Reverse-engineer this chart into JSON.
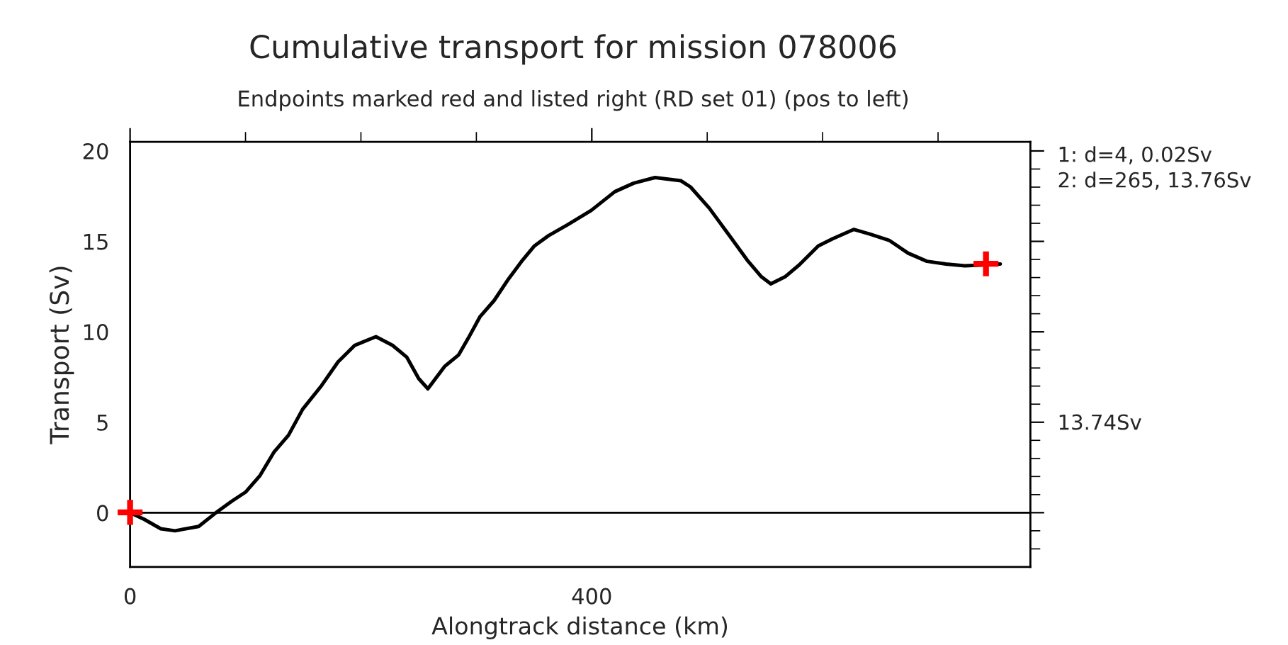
{
  "chart_data": {
    "type": "line",
    "title": "Cumulative transport for mission 078006",
    "subtitle": "Endpoints marked red and listed right (RD set 01) (pos to left)",
    "xlabel": "Alongtrack distance (km)",
    "ylabel": "Transport (Sv)",
    "series": [
      {
        "color": "#000000",
        "x": [
          0,
          12.3,
          26.6,
          38.9,
          59.4,
          73.8,
          88,
          100.3,
          112.6,
          124.9,
          137.2,
          149.5,
          165.9,
          180.2,
          194.6,
          213,
          227.4,
          239.7,
          250,
          258,
          272.4,
          284.7,
          293,
          303,
          315.4,
          327.7,
          340,
          350.3,
          362.6,
          379,
          399.5,
          420,
          436.4,
          454.8,
          477.3,
          485.5,
          501.9,
          518.3,
          534.7,
          547,
          555.1,
          567.4,
          579.7,
          596.2,
          608.5,
          626.9,
          641.2,
          657.6,
          674,
          690.3,
          706.8,
          723.2,
          739.5,
          753.9
        ],
        "values": [
          0,
          -0.37,
          -0.89,
          -1.0,
          -0.76,
          -0.03,
          0.63,
          1.15,
          2.06,
          3.37,
          4.28,
          5.72,
          7.03,
          8.34,
          9.25,
          9.73,
          9.25,
          8.6,
          7.42,
          6.85,
          8.08,
          8.73,
          9.65,
          10.82,
          11.73,
          12.91,
          13.96,
          14.75,
          15.32,
          15.92,
          16.71,
          17.75,
          18.22,
          18.53,
          18.35,
          18.01,
          16.83,
          15.4,
          13.96,
          13.04,
          12.65,
          13.04,
          13.7,
          14.75,
          15.14,
          15.66,
          15.4,
          15.06,
          14.35,
          13.9,
          13.75,
          13.65,
          13.7,
          13.75
        ]
      },
      {
        "type": "scatter",
        "color": "#ff0000",
        "marker": "cross",
        "x": [
          0,
          741.5
        ],
        "values": [
          0.02,
          13.76
        ]
      }
    ],
    "xlim": [
      0,
      780
    ],
    "ylim": [
      -3,
      20.5
    ],
    "xticks": [
      0,
      {
        "value": 100,
        "label": null
      },
      {
        "value": 200,
        "label": null
      },
      {
        "value": 300,
        "label": null
      },
      400,
      {
        "value": 500,
        "label": null
      },
      {
        "value": 600,
        "label": null
      },
      {
        "value": 700,
        "label": null
      }
    ],
    "yticks": [
      {
        "value": -2,
        "label": null
      },
      {
        "value": -1,
        "label": null
      },
      0,
      {
        "value": 1,
        "label": null
      },
      {
        "value": 2,
        "label": null
      },
      {
        "value": 3,
        "label": null
      },
      {
        "value": 4,
        "label": null
      },
      5,
      {
        "value": 6,
        "label": null
      },
      {
        "value": 7,
        "label": null
      },
      {
        "value": 8,
        "label": null
      },
      {
        "value": 9,
        "label": null
      },
      10,
      {
        "value": 11,
        "label": null
      },
      {
        "value": 12,
        "label": null
      },
      {
        "value": 13,
        "label": null
      },
      {
        "value": 14,
        "label": null
      },
      15,
      {
        "value": 16,
        "label": null
      },
      {
        "value": 17,
        "label": null
      },
      {
        "value": 18,
        "label": null
      },
      {
        "value": 19,
        "label": null
      },
      20
    ],
    "ref_lines": [
      {
        "axis": "y",
        "value": 0,
        "color": "#000000"
      }
    ],
    "annotations": [
      "1: d=4, 0.02Sv",
      "2: d=265, 13.76Sv",
      "13.74Sv"
    ],
    "grid": false,
    "legend": false
  }
}
